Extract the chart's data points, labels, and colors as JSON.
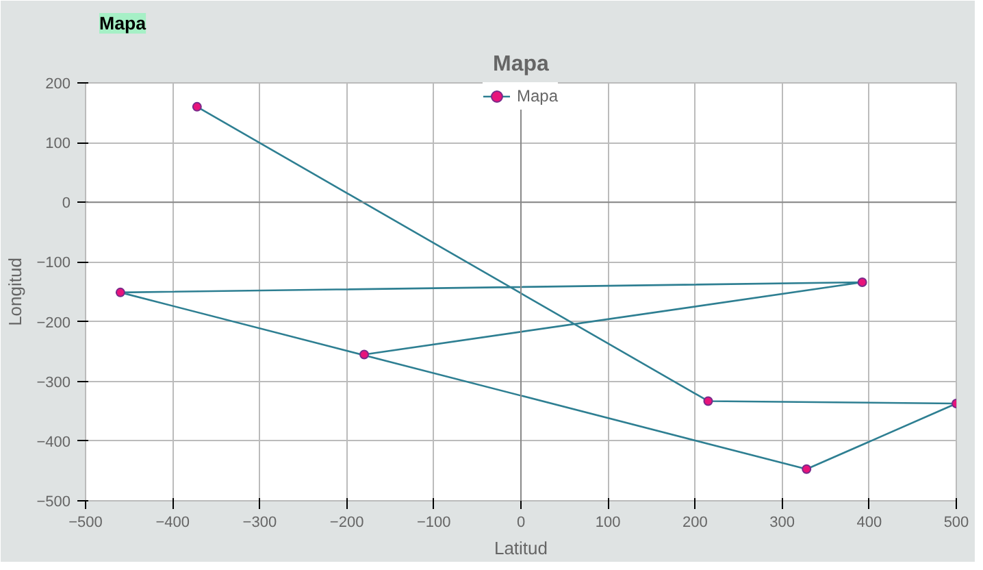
{
  "chart_data": {
    "type": "line",
    "title": "Mapa",
    "annotations": [
      "Mapa"
    ],
    "xlabel": "Latitud",
    "ylabel": "Longitud",
    "x": [
      -372,
      215,
      500,
      328,
      -460,
      392,
      -180
    ],
    "series": [
      {
        "name": "Mapa",
        "color": "#2e7f92",
        "values": [
          160,
          -333,
          -337,
          -447,
          -151,
          -134,
          -255
        ]
      }
    ],
    "xlim": [
      -500,
      500
    ],
    "xticks": [
      -500,
      -400,
      -300,
      -200,
      -100,
      0,
      100,
      200,
      300,
      400,
      500
    ],
    "ylim": [
      -500,
      200
    ],
    "yticks": [
      -500,
      -400,
      -300,
      -200,
      -100,
      0,
      100,
      200
    ],
    "grid": true,
    "legend": "top",
    "marker": "circle",
    "line_style": "solid"
  }
}
